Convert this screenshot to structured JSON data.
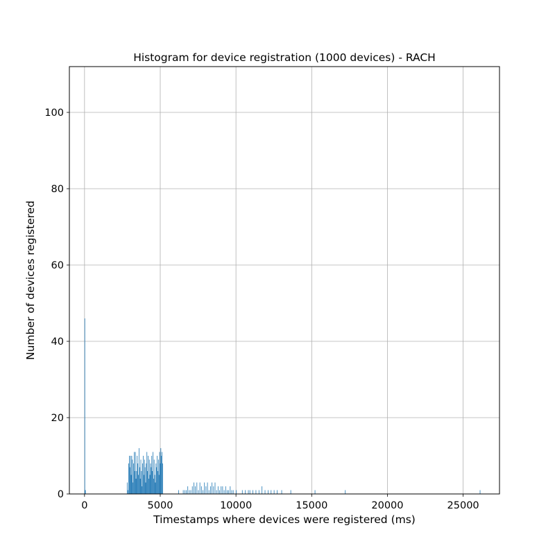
{
  "chart_data": {
    "type": "bar",
    "title": "Histogram for device registration (1000 devices) - RACH",
    "xlabel": "Timestamps where devices were registered (ms)",
    "ylabel": "Number of devices registered",
    "xlim": [
      -1000,
      27400
    ],
    "ylim": [
      0,
      112
    ],
    "grid": true,
    "bar_color": "#1f77b4",
    "xticks": [
      0,
      5000,
      10000,
      15000,
      20000,
      25000
    ],
    "yticks": [
      0,
      20,
      40,
      60,
      80,
      100
    ],
    "bin_width": 20,
    "series": [
      {
        "x": [
          0,
          20,
          40,
          2800,
          2840,
          2900,
          2940,
          2980,
          3020,
          3060,
          3100,
          3140,
          3180,
          3220,
          3260,
          3300,
          3340,
          3380,
          3420,
          3460,
          3500,
          3540,
          3580,
          3620,
          3660,
          3700,
          3740,
          3780,
          3820,
          3860,
          3900,
          3940,
          3980,
          4020,
          4060,
          4100,
          4140,
          4180,
          4220,
          4260,
          4300,
          4340,
          4380,
          4420,
          4460,
          4500,
          4540,
          4580,
          4620,
          4660,
          4700,
          4740,
          4780,
          4820,
          4860,
          4900,
          4940,
          4980,
          5020,
          5060,
          5100,
          5140,
          6200,
          6500,
          6600,
          6700,
          6800,
          6900,
          7000,
          7100,
          7200,
          7300,
          7400,
          7500,
          7600,
          7700,
          7800,
          7900,
          8000,
          8100,
          8200,
          8300,
          8400,
          8500,
          8600,
          8700,
          8800,
          8900,
          9000,
          9100,
          9200,
          9300,
          9400,
          9500,
          9600,
          9700,
          9800,
          10000,
          10400,
          10600,
          10800,
          10900,
          11100,
          11300,
          11500,
          11700,
          11900,
          12100,
          12300,
          12500,
          12700,
          13000,
          13600,
          15200,
          17200,
          26100
        ],
        "values": [
          46,
          1,
          1,
          3,
          1,
          8,
          10,
          7,
          10,
          5,
          10,
          9,
          3,
          8,
          11,
          6,
          11,
          4,
          6,
          10,
          8,
          5,
          12,
          7,
          4,
          9,
          6,
          2,
          8,
          10,
          5,
          9,
          7,
          3,
          8,
          11,
          6,
          10,
          4,
          9,
          5,
          8,
          7,
          10,
          6,
          11,
          4,
          9,
          5,
          3,
          8,
          7,
          10,
          6,
          9,
          5,
          11,
          8,
          12,
          10,
          11,
          8,
          1,
          1,
          1,
          1,
          2,
          1,
          1,
          2,
          3,
          2,
          3,
          1,
          3,
          2,
          1,
          3,
          2,
          3,
          1,
          2,
          3,
          2,
          3,
          1,
          2,
          1,
          2,
          2,
          1,
          2,
          1,
          1,
          2,
          1,
          1,
          1,
          1,
          1,
          1,
          1,
          1,
          1,
          1,
          2,
          1,
          1,
          1,
          1,
          1,
          1,
          1,
          1,
          1,
          1
        ]
      }
    ]
  }
}
